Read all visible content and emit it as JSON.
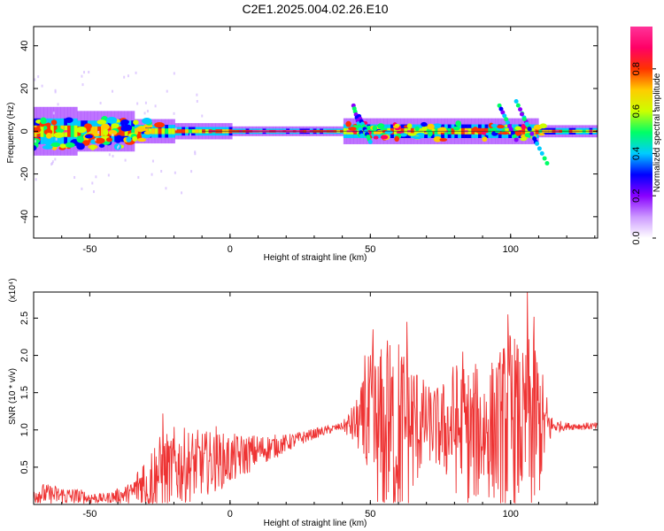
{
  "title": "C2E1.2025.004.02.26.E10",
  "chart_data": [
    {
      "type": "heatmap",
      "name": "spectrogram",
      "xlabel": "Height of straight line (km)",
      "ylabel": "Frequency (Hz)",
      "xlim": [
        -70,
        131
      ],
      "ylim": [
        -50,
        49
      ],
      "xticks": [
        -50,
        0,
        50,
        100
      ],
      "xtick_labels": [
        "-50",
        "0",
        "50",
        "100"
      ],
      "yticks": [
        40,
        20,
        0,
        -20,
        -40
      ],
      "ytick_labels": [
        "40",
        "20",
        "0",
        "-20",
        "-40"
      ],
      "ridge_center_hz": 0,
      "colorbar": {
        "label": "Normalized spectral amplitude",
        "range": [
          0,
          1
        ],
        "ticks": [
          0.0,
          0.2,
          0.4,
          0.6,
          0.8
        ],
        "tick_labels": [
          "0.0",
          "0.2",
          "0.4",
          "0.6",
          "0.8"
        ],
        "colors": [
          "#ffffff",
          "#cc99ff",
          "#8800ff",
          "#0000ff",
          "#00ccff",
          "#00ff66",
          "#ccff00",
          "#ffcc00",
          "#ff3300",
          "#ff0066",
          "#ff3399"
        ]
      },
      "streaks": [
        {
          "x": [
            96,
            102
          ],
          "y": [
            12,
            -4
          ]
        },
        {
          "x": [
            102,
            109
          ],
          "y": [
            14,
            -5
          ]
        },
        {
          "x": [
            104,
            113
          ],
          "y": [
            8,
            -15
          ]
        },
        {
          "x": [
            44,
            47
          ],
          "y": [
            12,
            -2
          ]
        },
        {
          "x": [
            46,
            50
          ],
          "y": [
            7,
            -5
          ]
        }
      ]
    },
    {
      "type": "line",
      "name": "snr",
      "xlabel": "Height of straight line (km)",
      "ylabel": "SNR (10 * v/v)",
      "y_multiplier": "(x10⁴)",
      "xlim": [
        -70,
        131
      ],
      "ylim": [
        0,
        2.85
      ],
      "xticks": [
        -50,
        0,
        50,
        100
      ],
      "xtick_labels": [
        "-50",
        "0",
        "50",
        "100"
      ],
      "yticks": [
        0.5,
        1.0,
        1.5,
        2.0,
        2.5
      ],
      "ytick_labels": [
        "0.5",
        "1.0",
        "1.5",
        "2.0",
        "2.5"
      ],
      "line_color": "#ee3333",
      "envelope": {
        "x": [
          -70,
          -55,
          -45,
          -35,
          -30,
          -20,
          -10,
          0,
          10,
          20,
          30,
          40,
          46,
          50,
          55,
          60,
          65,
          70,
          75,
          80,
          85,
          90,
          95,
          100,
          105,
          108,
          112,
          115,
          120,
          131
        ],
        "center": [
          0.15,
          0.1,
          0.08,
          0.15,
          0.35,
          0.5,
          0.55,
          0.6,
          0.72,
          0.82,
          0.95,
          1.05,
          1.08,
          1.0,
          0.95,
          1.0,
          1.05,
          1.1,
          1.0,
          1.05,
          0.9,
          1.0,
          1.0,
          1.1,
          1.0,
          1.1,
          1.05,
          1.05,
          1.05,
          1.05
        ],
        "amp": [
          0.15,
          0.12,
          0.06,
          0.15,
          0.45,
          0.55,
          0.45,
          0.35,
          0.22,
          0.12,
          0.07,
          0.05,
          0.4,
          1.1,
          1.2,
          1.3,
          1.0,
          0.5,
          0.6,
          0.9,
          1.0,
          0.9,
          1.0,
          1.3,
          1.0,
          1.5,
          0.6,
          0.1,
          0.05,
          0.05
        ]
      },
      "peaks": [
        {
          "x": 48,
          "y": 2.0
        },
        {
          "x": 51,
          "y": 2.35
        },
        {
          "x": 56,
          "y": 2.2
        },
        {
          "x": 63,
          "y": 2.45
        },
        {
          "x": 83,
          "y": 2.05
        },
        {
          "x": 99,
          "y": 2.55
        },
        {
          "x": 106,
          "y": 2.85
        },
        {
          "x": -24,
          "y": 1.22
        },
        {
          "x": -5,
          "y": 1.05
        }
      ]
    }
  ]
}
